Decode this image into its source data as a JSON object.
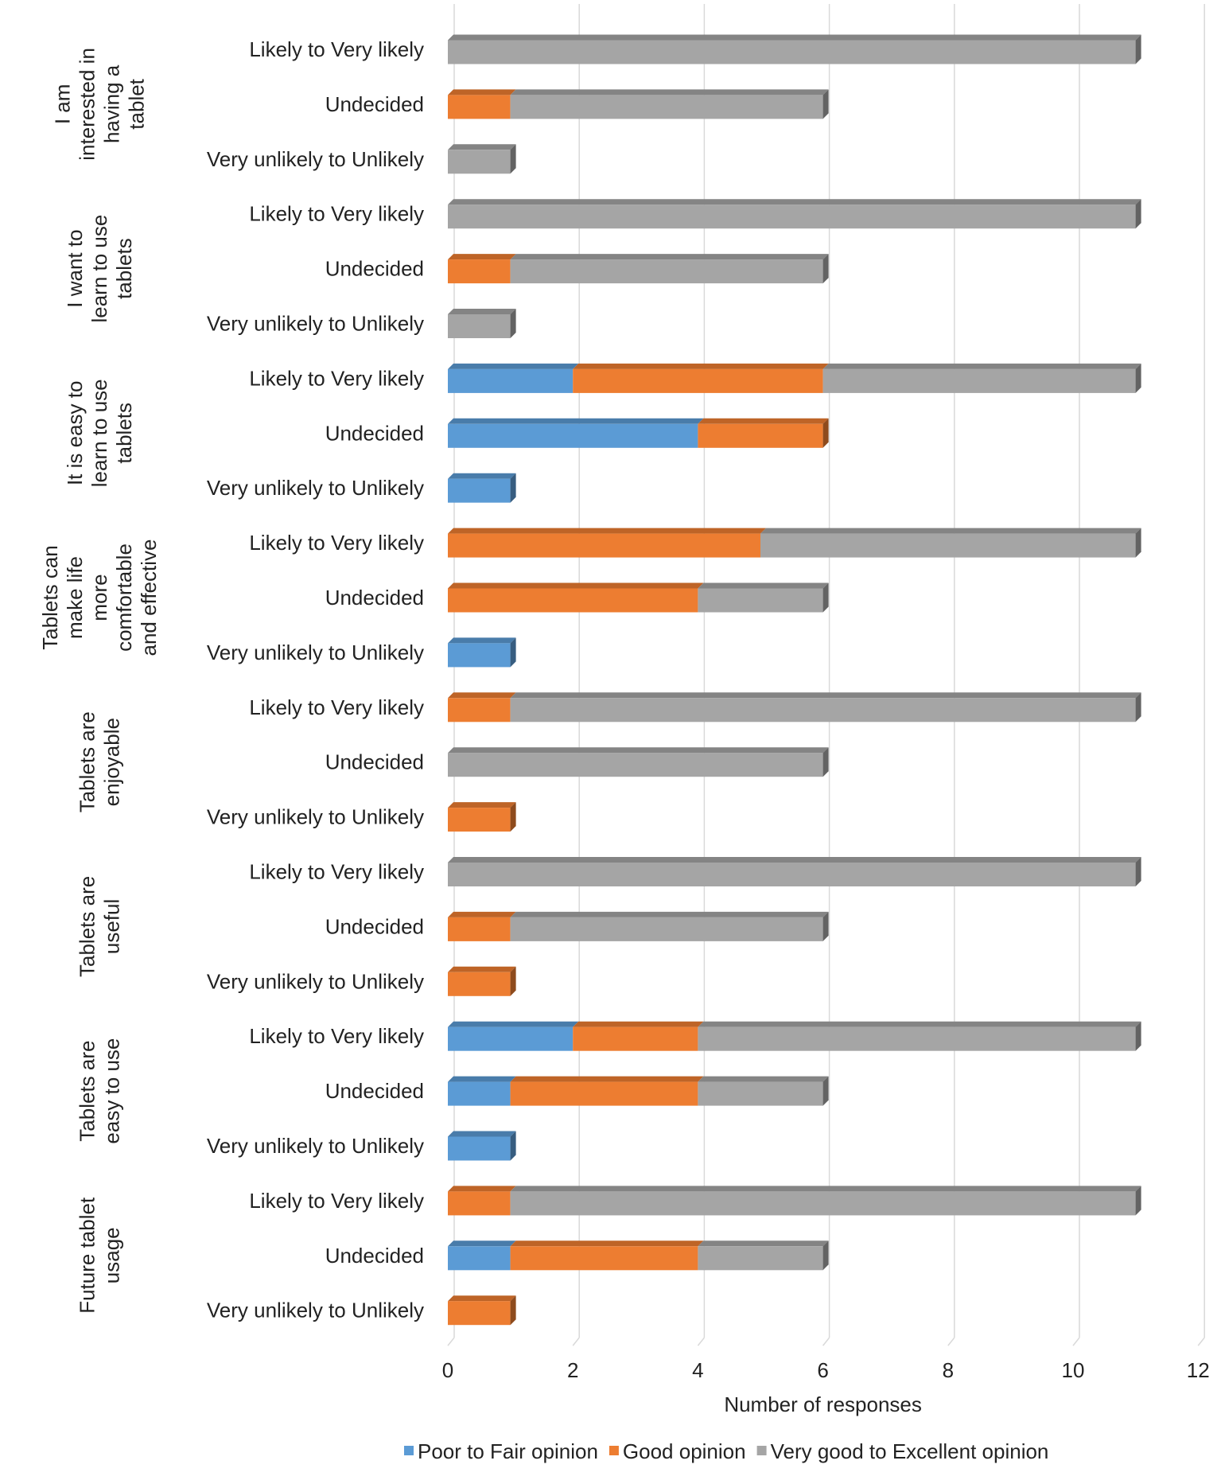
{
  "chart_data": {
    "type": "bar",
    "orientation": "horizontal",
    "stacked": true,
    "title": "",
    "xlabel": "Number of responses",
    "ylabel": "",
    "xlim": [
      0,
      12
    ],
    "xticks": [
      0,
      2,
      4,
      6,
      8,
      10,
      12
    ],
    "grid": true,
    "legend_position": "bottom",
    "series": [
      {
        "name": "Poor to Fair opinion",
        "color": "#5b9bd5"
      },
      {
        "name": "Good opinion",
        "color": "#ed7d31"
      },
      {
        "name": "Very good to Excellent opinion",
        "color": "#a5a5a5"
      }
    ],
    "groups": [
      {
        "label": "I am interested in having a tablet",
        "lines": [
          "I am",
          "interested in",
          "having a",
          "tablet"
        ],
        "rows": [
          {
            "label": "Likely to Very likely",
            "values": [
              0,
              0,
              11
            ]
          },
          {
            "label": "Undecided",
            "values": [
              0,
              1,
              5
            ]
          },
          {
            "label": "Very unlikely to Unlikely",
            "values": [
              0,
              0,
              1
            ]
          }
        ]
      },
      {
        "label": "I want to learn to use tablets",
        "lines": [
          "I want to",
          "learn to use",
          "tablets"
        ],
        "rows": [
          {
            "label": "Likely to Very likely",
            "values": [
              0,
              0,
              11
            ]
          },
          {
            "label": "Undecided",
            "values": [
              0,
              1,
              5
            ]
          },
          {
            "label": "Very unlikely to Unlikely",
            "values": [
              0,
              0,
              1
            ]
          }
        ]
      },
      {
        "label": "It is easy to learn to use tablets",
        "lines": [
          "It is easy to",
          "learn to use",
          "tablets"
        ],
        "rows": [
          {
            "label": "Likely to Very likely",
            "values": [
              2,
              4,
              5
            ]
          },
          {
            "label": "Undecided",
            "values": [
              4,
              2,
              0
            ]
          },
          {
            "label": "Very unlikely to Unlikely",
            "values": [
              1,
              0,
              0
            ]
          }
        ]
      },
      {
        "label": "Tablets can make life more comfortable and effective",
        "lines": [
          "Tablets can",
          "make life",
          "more",
          "comfortable",
          "and effective"
        ],
        "rows": [
          {
            "label": "Likely to Very likely",
            "values": [
              0,
              5,
              6
            ]
          },
          {
            "label": "Undecided",
            "values": [
              0,
              4,
              2
            ]
          },
          {
            "label": "Very unlikely to Unlikely",
            "values": [
              1,
              0,
              0
            ]
          }
        ]
      },
      {
        "label": "Tablets are enjoyable",
        "lines": [
          "Tablets are",
          "enjoyable"
        ],
        "rows": [
          {
            "label": "Likely to Very likely",
            "values": [
              0,
              1,
              10
            ]
          },
          {
            "label": "Undecided",
            "values": [
              0,
              0,
              6
            ]
          },
          {
            "label": "Very unlikely to Unlikely",
            "values": [
              0,
              1,
              0
            ]
          }
        ]
      },
      {
        "label": "Tablets are useful",
        "lines": [
          "Tablets are",
          "useful"
        ],
        "rows": [
          {
            "label": "Likely to Very likely",
            "values": [
              0,
              0,
              11
            ]
          },
          {
            "label": "Undecided",
            "values": [
              0,
              1,
              5
            ]
          },
          {
            "label": "Very unlikely to Unlikely",
            "values": [
              0,
              1,
              0
            ]
          }
        ]
      },
      {
        "label": "Tablets are easy to use",
        "lines": [
          "Tablets are",
          "easy to use"
        ],
        "rows": [
          {
            "label": "Likely to Very likely",
            "values": [
              2,
              2,
              7
            ]
          },
          {
            "label": "Undecided",
            "values": [
              1,
              3,
              2
            ]
          },
          {
            "label": "Very unlikely to Unlikely",
            "values": [
              1,
              0,
              0
            ]
          }
        ]
      },
      {
        "label": "Future tablet usage",
        "lines": [
          "Future tablet",
          "usage"
        ],
        "rows": [
          {
            "label": "Likely to Very likely",
            "values": [
              0,
              1,
              10
            ]
          },
          {
            "label": "Undecided",
            "values": [
              1,
              3,
              2
            ]
          },
          {
            "label": "Very unlikely to Unlikely",
            "values": [
              0,
              1,
              0
            ]
          }
        ]
      }
    ]
  }
}
